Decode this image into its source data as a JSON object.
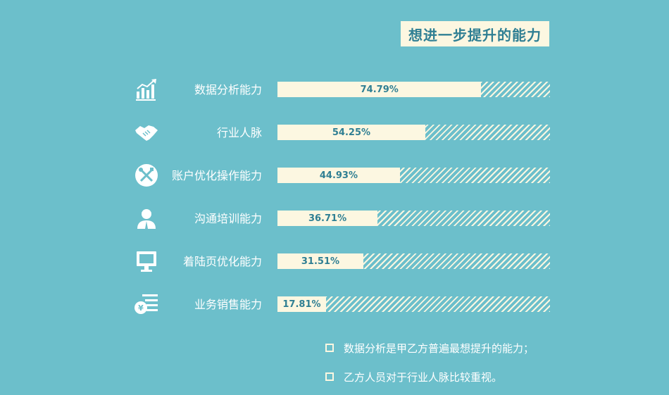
{
  "chart_data": {
    "type": "bar",
    "orientation": "horizontal",
    "title": "想进一步提升的能力",
    "categories": [
      "数据分析能力",
      "行业人脉",
      "账户优化操作能力",
      "沟通培训能力",
      "着陆页优化能力",
      "业务销售能力"
    ],
    "values": [
      74.79,
      54.25,
      44.93,
      36.71,
      31.51,
      17.81
    ],
    "value_labels": [
      "74.79%",
      "54.25%",
      "44.93%",
      "36.71%",
      "31.51%",
      "17.81%"
    ],
    "icons": [
      "growth-chart-icon",
      "handshake-icon",
      "wrench-screwdriver-icon",
      "person-icon",
      "monitor-icon",
      "yen-list-icon"
    ],
    "xlim": [
      0,
      100
    ],
    "unit": "%"
  },
  "notes": [
    "数据分析是甲乙方普遍最想提升的能力；",
    "乙方人员对于行业人脉比较重视。"
  ],
  "colors": {
    "background": "#6cbfcb",
    "bar": "#fcf7e1",
    "text_accent": "#2f7f93"
  }
}
